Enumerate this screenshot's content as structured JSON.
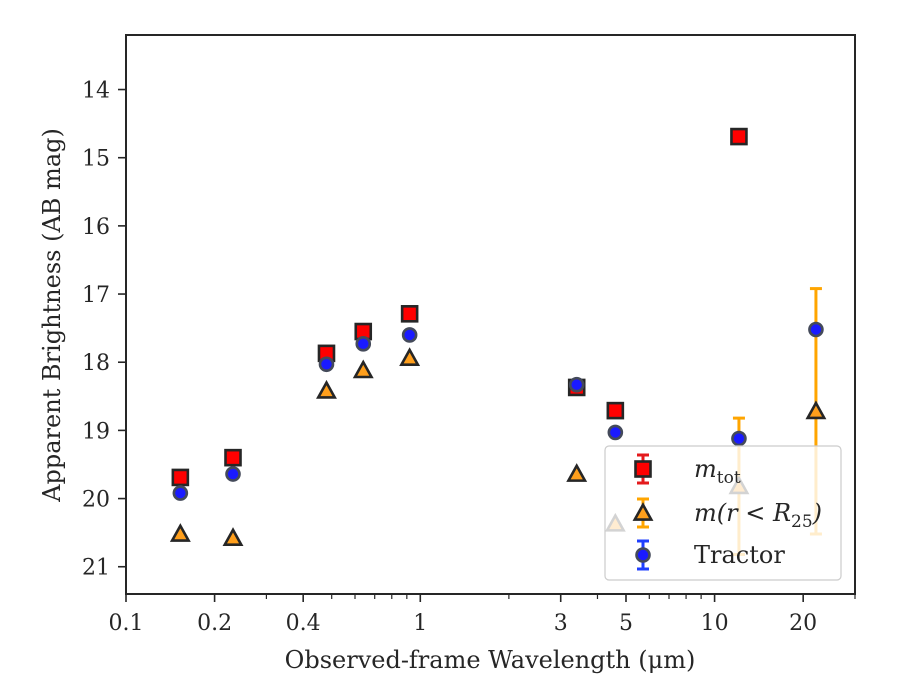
{
  "chart_data": {
    "type": "scatter",
    "xlabel": "Observed-frame Wavelength (μm)",
    "ylabel": "Apparent Brightness (AB mag)",
    "x_scale": "log",
    "xlim": [
      0.1,
      30
    ],
    "ylim": [
      21.4,
      13.2
    ],
    "y_inverted": true,
    "x_ticks": [
      {
        "value": 0.1,
        "label": "0.1"
      },
      {
        "value": 0.2,
        "label": "0.2"
      },
      {
        "value": 0.4,
        "label": "0.4"
      },
      {
        "value": 1,
        "label": "1"
      },
      {
        "value": 3,
        "label": "3"
      },
      {
        "value": 5,
        "label": "5"
      },
      {
        "value": 10,
        "label": "10"
      },
      {
        "value": 20,
        "label": "20"
      }
    ],
    "y_ticks": [
      14,
      15,
      16,
      17,
      18,
      19,
      20,
      21
    ],
    "grid": false,
    "legend_position": "lower-right",
    "series": [
      {
        "label_main": "m",
        "label_sub": "tot",
        "marker": "square",
        "color": "#ff0000",
        "edge_color": "#262626",
        "error_color": "#e41a1c",
        "points": [
          {
            "x": 0.153,
            "y": 19.69,
            "err": 0.04
          },
          {
            "x": 0.231,
            "y": 19.4,
            "err": 0.04
          },
          {
            "x": 0.48,
            "y": 17.87,
            "err": 0.03
          },
          {
            "x": 0.64,
            "y": 17.55,
            "err": 0.03
          },
          {
            "x": 0.92,
            "y": 17.29,
            "err": 0.03
          },
          {
            "x": 3.4,
            "y": 18.37,
            "err": 0.05
          },
          {
            "x": 4.6,
            "y": 18.71,
            "err": 0.05
          },
          {
            "x": 12.1,
            "y": 14.69,
            "err": 0.04
          }
        ]
      },
      {
        "label_main": "m(r < R",
        "label_sub": "25",
        "label_suffix": ")",
        "marker": "triangle",
        "color": "#ff9f1c",
        "edge_color": "#262626",
        "error_color": "#ffa500",
        "points": [
          {
            "x": 0.153,
            "y": 20.52,
            "err": 0.04
          },
          {
            "x": 0.231,
            "y": 20.58,
            "err": 0.04
          },
          {
            "x": 0.48,
            "y": 18.42,
            "err": 0.03
          },
          {
            "x": 0.64,
            "y": 18.12,
            "err": 0.03
          },
          {
            "x": 0.92,
            "y": 17.94,
            "err": 0.03
          },
          {
            "x": 3.4,
            "y": 19.64,
            "err": 0.06
          },
          {
            "x": 4.6,
            "y": 20.37,
            "err": 0.1
          },
          {
            "x": 12.1,
            "y": 19.82,
            "err": 1.0
          },
          {
            "x": 22.1,
            "y": 18.72,
            "err": 1.8
          }
        ]
      },
      {
        "label_main": "Tractor",
        "marker": "circle",
        "color": "#1a1aff",
        "edge_color": "#444a5a",
        "error_color": "#1f3fff",
        "points": [
          {
            "x": 0.153,
            "y": 19.92,
            "err": 0.04
          },
          {
            "x": 0.231,
            "y": 19.64,
            "err": 0.04
          },
          {
            "x": 0.48,
            "y": 18.03,
            "err": 0.03
          },
          {
            "x": 0.64,
            "y": 17.73,
            "err": 0.03
          },
          {
            "x": 0.92,
            "y": 17.6,
            "err": 0.03
          },
          {
            "x": 3.4,
            "y": 18.33,
            "err": 0.05
          },
          {
            "x": 4.6,
            "y": 19.03,
            "err": 0.06
          },
          {
            "x": 12.1,
            "y": 19.12,
            "err": 0.08
          },
          {
            "x": 22.1,
            "y": 17.52,
            "err": 0.1
          }
        ]
      }
    ]
  }
}
